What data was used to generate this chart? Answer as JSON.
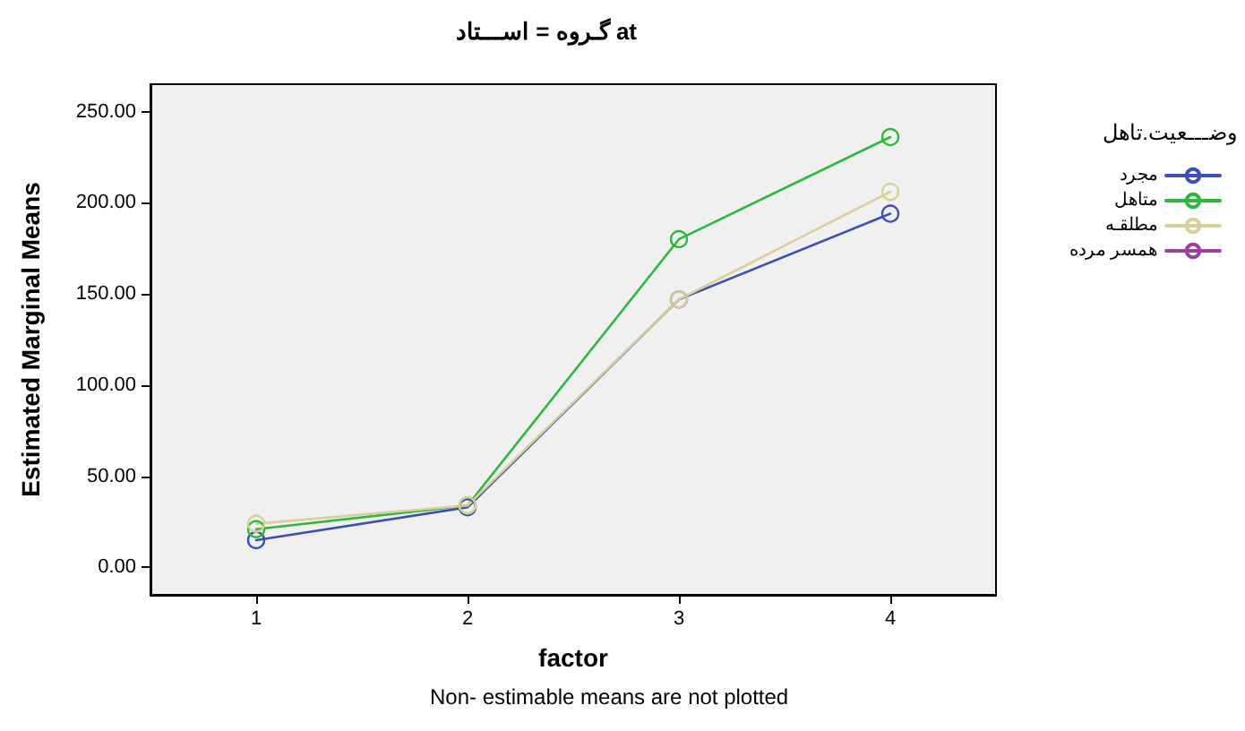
{
  "chart_data": {
    "type": "line",
    "title": "گـروه = اســـتاد at",
    "xlabel": "factor",
    "ylabel": "Estimated Marginal Means",
    "legend_title": "وضـــعیت.تاهل",
    "categories": [
      "1",
      "2",
      "3",
      "4"
    ],
    "series": [
      {
        "name": "مجرد",
        "color": "#3c4fb5",
        "values": [
          15,
          33,
          147,
          194
        ]
      },
      {
        "name": "متاهل",
        "color": "#2db83d",
        "values": [
          21,
          34,
          180,
          236
        ]
      },
      {
        "name": "مطلقـه",
        "color": "#d8cf9a",
        "values": [
          24,
          34,
          147,
          206
        ]
      },
      {
        "name": "همسر مرده",
        "color": "#9b3fa0",
        "values": [
          null,
          null,
          null,
          null
        ]
      }
    ],
    "ylim": [
      -15,
      265
    ],
    "yticks": [
      {
        "value": 0,
        "label": "0.00"
      },
      {
        "value": 50,
        "label": "50.00"
      },
      {
        "value": 100,
        "label": "100.00"
      },
      {
        "value": 150,
        "label": "150.00"
      },
      {
        "value": 200,
        "label": "200.00"
      },
      {
        "value": 250,
        "label": "250.00"
      }
    ],
    "annotations": [
      "Non- estimable means are not plotted"
    ],
    "grid": false,
    "legend": "top right",
    "marker": "circle",
    "line_style": "solid"
  }
}
